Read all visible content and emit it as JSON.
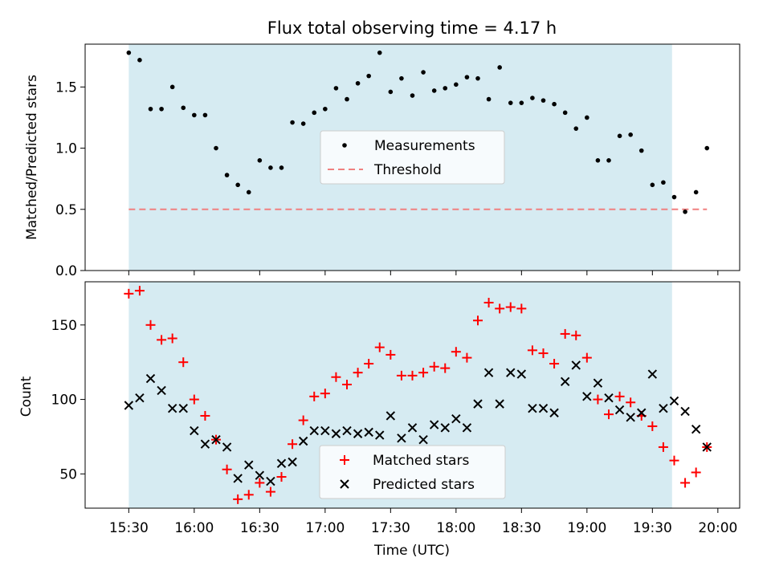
{
  "chart_data": [
    {
      "type": "scatter",
      "title": "Flux total observing time = 4.17 h",
      "ylabel": "Matched/Predicted stars",
      "ylim": [
        0,
        1.85
      ],
      "yticks": [
        0.0,
        0.5,
        1.0,
        1.5
      ],
      "ytick_labels": [
        "0.0",
        "0.5",
        "1.0",
        "1.5"
      ],
      "shaded_range_min": [
        930,
        1179
      ],
      "threshold": 0.5,
      "threshold_range_min": [
        930,
        1195
      ],
      "legend": {
        "location": "center",
        "entries": [
          "Measurements",
          "Threshold"
        ]
      },
      "series": [
        {
          "name": "Measurements",
          "x_min": [
            930,
            935,
            940,
            945,
            950,
            955,
            960,
            965,
            970,
            975,
            980,
            985,
            990,
            995,
            1000,
            1005,
            1010,
            1015,
            1020,
            1025,
            1030,
            1035,
            1040,
            1045,
            1050,
            1055,
            1060,
            1065,
            1070,
            1075,
            1080,
            1085,
            1090,
            1095,
            1100,
            1105,
            1110,
            1115,
            1120,
            1125,
            1130,
            1135,
            1140,
            1145,
            1150,
            1155,
            1160,
            1165,
            1170,
            1175,
            1180,
            1185,
            1190,
            1195
          ],
          "values": [
            1.78,
            1.72,
            1.32,
            1.32,
            1.5,
            1.33,
            1.27,
            1.27,
            1.0,
            0.78,
            0.7,
            0.64,
            0.9,
            0.84,
            0.84,
            1.21,
            1.2,
            1.29,
            1.32,
            1.49,
            1.4,
            1.53,
            1.59,
            1.78,
            1.46,
            1.57,
            1.43,
            1.62,
            1.47,
            1.49,
            1.52,
            1.58,
            1.57,
            1.4,
            1.66,
            1.37,
            1.37,
            1.41,
            1.39,
            1.36,
            1.29,
            1.16,
            1.25,
            0.9,
            0.9,
            1.1,
            1.11,
            0.98,
            0.7,
            0.72,
            0.6,
            0.48,
            0.64,
            1.0
          ]
        }
      ]
    },
    {
      "type": "scatter",
      "xlabel": "Time (UTC)",
      "ylabel": "Count",
      "ylim": [
        27,
        179
      ],
      "yticks": [
        50,
        100,
        150
      ],
      "ytick_labels": [
        "50",
        "100",
        "150"
      ],
      "xlim_min": [
        910,
        1210
      ],
      "xticks_min": [
        930,
        960,
        990,
        1020,
        1050,
        1080,
        1110,
        1140,
        1170,
        1200
      ],
      "xtick_labels": [
        "15:30",
        "16:00",
        "16:30",
        "17:00",
        "17:30",
        "18:00",
        "18:30",
        "19:00",
        "19:30",
        "20:00"
      ],
      "shaded_range_min": [
        930,
        1179
      ],
      "legend": {
        "location": "lower center",
        "entries": [
          "Matched stars",
          "Predicted stars"
        ]
      },
      "series": [
        {
          "name": "Matched stars",
          "marker": "+",
          "color": "#ff0000",
          "x_min": [
            930,
            935,
            940,
            945,
            950,
            955,
            960,
            965,
            970,
            975,
            980,
            985,
            990,
            995,
            1000,
            1005,
            1010,
            1015,
            1020,
            1025,
            1030,
            1035,
            1040,
            1045,
            1050,
            1055,
            1060,
            1065,
            1070,
            1075,
            1080,
            1085,
            1090,
            1095,
            1100,
            1105,
            1110,
            1115,
            1120,
            1125,
            1130,
            1135,
            1140,
            1145,
            1150,
            1155,
            1160,
            1165,
            1170,
            1175,
            1180,
            1185,
            1190,
            1195
          ],
          "values": [
            171,
            173,
            150,
            140,
            141,
            125,
            100,
            89,
            73,
            53,
            33,
            36,
            44,
            38,
            48,
            70,
            86,
            102,
            104,
            115,
            110,
            118,
            124,
            135,
            130,
            116,
            116,
            118,
            122,
            121,
            132,
            128,
            153,
            165,
            161,
            162,
            161,
            133,
            131,
            124,
            144,
            143,
            128,
            100,
            90,
            102,
            98,
            89,
            82,
            68,
            59,
            44,
            51,
            68
          ]
        },
        {
          "name": "Predicted stars",
          "marker": "x",
          "color": "#000000",
          "x_min": [
            930,
            935,
            940,
            945,
            950,
            955,
            960,
            965,
            970,
            975,
            980,
            985,
            990,
            995,
            1000,
            1005,
            1010,
            1015,
            1020,
            1025,
            1030,
            1035,
            1040,
            1045,
            1050,
            1055,
            1060,
            1065,
            1070,
            1075,
            1080,
            1085,
            1090,
            1095,
            1100,
            1105,
            1110,
            1115,
            1120,
            1125,
            1130,
            1135,
            1140,
            1145,
            1150,
            1155,
            1160,
            1165,
            1170,
            1175,
            1180,
            1185,
            1190,
            1195
          ],
          "values": [
            96,
            101,
            114,
            106,
            94,
            94,
            79,
            70,
            73,
            68,
            47,
            56,
            49,
            45,
            57,
            58,
            72,
            79,
            79,
            77,
            79,
            77,
            78,
            76,
            89,
            74,
            81,
            73,
            83,
            81,
            87,
            81,
            97,
            118,
            97,
            118,
            117,
            94,
            94,
            91,
            112,
            123,
            102,
            111,
            101,
            93,
            88,
            91,
            117,
            94,
            99,
            92,
            80,
            68
          ]
        }
      ]
    }
  ]
}
